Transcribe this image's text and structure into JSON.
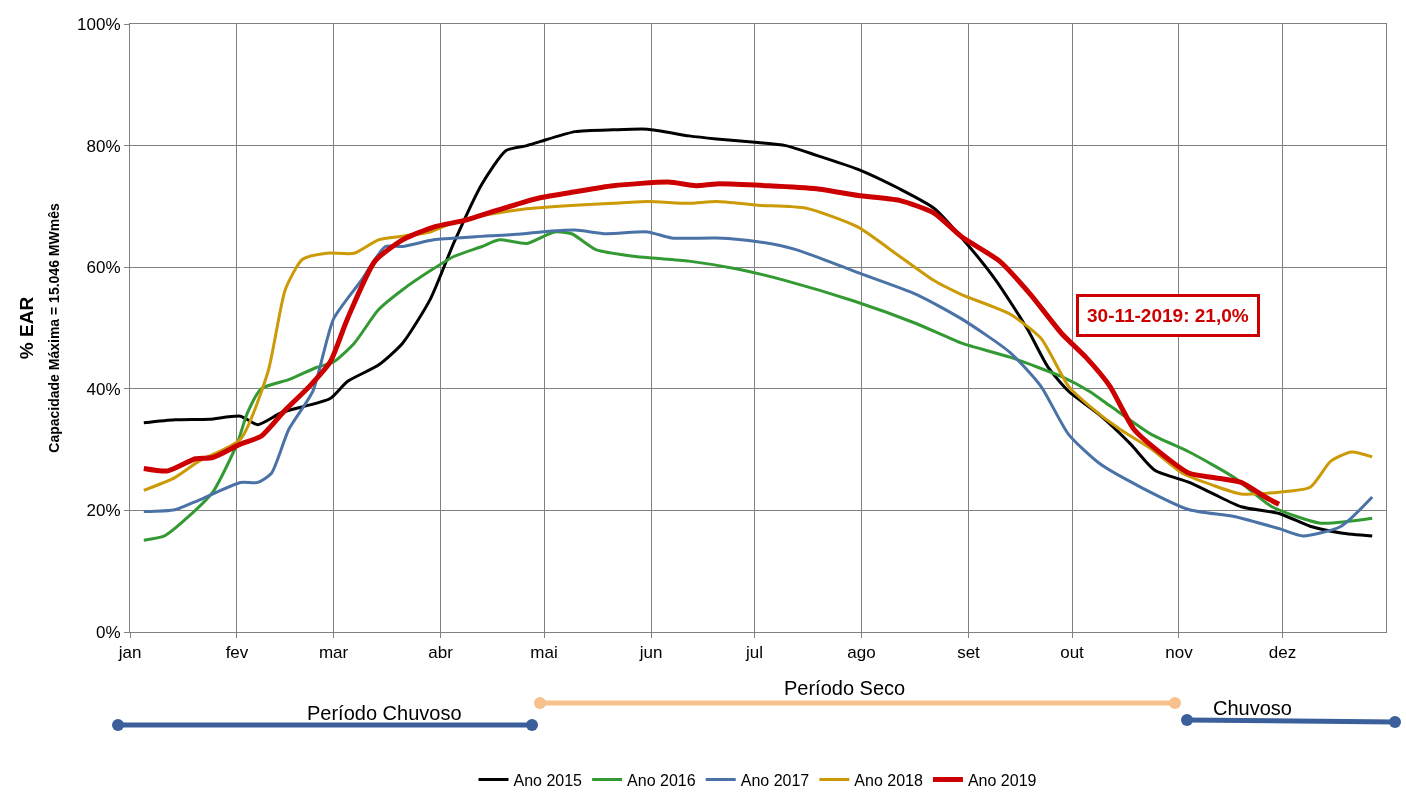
{
  "chart_data": {
    "type": "line",
    "ylabel": "% EAR\nCapacidade Máxima = 15.046 MWmês",
    "xlim": [
      "--01-01",
      "--12-31"
    ],
    "xticks": [
      {
        "value": "--01-01",
        "label": "jan"
      },
      {
        "value": "--02-01",
        "label": "fev"
      },
      {
        "value": "--03-01",
        "label": "mar"
      },
      {
        "value": "--04-01",
        "label": "abr"
      },
      {
        "value": "--05-01",
        "label": "mai"
      },
      {
        "value": "--06-01",
        "label": "jun"
      },
      {
        "value": "--07-01",
        "label": "jul"
      },
      {
        "value": "--08-01",
        "label": "ago"
      },
      {
        "value": "--09-01",
        "label": "set"
      },
      {
        "value": "--10-01",
        "label": "out"
      },
      {
        "value": "--11-01",
        "label": "nov"
      },
      {
        "value": "--12-01",
        "label": "dez"
      }
    ],
    "ylim": [
      0,
      100
    ],
    "yticks": [
      {
        "value": 0,
        "label": "0%"
      },
      {
        "value": 20,
        "label": "20%"
      },
      {
        "value": 40,
        "label": "40%"
      },
      {
        "value": 60,
        "label": "60%"
      },
      {
        "value": 80,
        "label": "80%"
      },
      {
        "value": 100,
        "label": "100%"
      }
    ],
    "grid": true,
    "legend": "bottom",
    "line_style": "solid",
    "series": [
      {
        "name": "Ano 2015",
        "color": "#000000",
        "x": [
          "--01-05",
          "--01-14",
          "--01-24",
          "--02-02",
          "--02-07",
          "--02-14",
          "--02-28",
          "--03-05",
          "--03-14",
          "--03-21",
          "--03-29",
          "--04-05",
          "--04-13",
          "--04-20",
          "--04-26",
          "--04-30",
          "--05-10",
          "--05-21",
          "--05-31",
          "--06-12",
          "--06-20",
          "--07-02",
          "--07-10",
          "--07-19",
          "--07-31",
          "--08-12",
          "--08-22",
          "--08-31",
          "--09-09",
          "--09-18",
          "--09-24",
          "--09-30",
          "--10-09",
          "--10-18",
          "--10-25",
          "--11-04",
          "--11-11",
          "--11-19",
          "--11-30",
          "--12-09",
          "--12-18",
          "--12-27"
        ],
        "values": [
          34.4,
          34.9,
          35,
          35.5,
          34.1,
          36.1,
          38.4,
          41.2,
          43.9,
          47.5,
          54.7,
          64.2,
          73.7,
          79.2,
          80,
          80.7,
          82.3,
          82.6,
          82.7,
          81.6,
          81.1,
          80.5,
          80,
          78.4,
          76.1,
          72.9,
          69.7,
          64.2,
          57.8,
          49.9,
          43.6,
          39.6,
          35.7,
          30.9,
          26.6,
          24.6,
          22.7,
          20.6,
          19.5,
          17.4,
          16.3,
          15.8
        ]
      },
      {
        "name": "Ano 2016",
        "color": "#339933",
        "x": [
          "--01-05",
          "--01-11",
          "--01-18",
          "--01-25",
          "--02-01",
          "--02-04",
          "--02-08",
          "--02-16",
          "--02-24",
          "--03-01",
          "--03-07",
          "--03-14",
          "--03-21",
          "--03-29",
          "--04-05",
          "--04-13",
          "--04-18",
          "--04-26",
          "--05-04",
          "--05-09",
          "--05-16",
          "--05-27",
          "--06-12",
          "--06-26",
          "--07-10",
          "--07-30",
          "--08-17",
          "--08-30",
          "--09-13",
          "--09-28",
          "--10-06",
          "--10-12",
          "--10-24",
          "--11-04",
          "--11-17",
          "--11-28",
          "--12-12",
          "--12-27"
        ],
        "values": [
          15.1,
          15.8,
          19,
          23,
          30.9,
          36,
          40,
          41.5,
          43.5,
          44.4,
          47.5,
          53,
          56.3,
          59.4,
          61.8,
          63.4,
          64.5,
          63.9,
          65.8,
          65.5,
          62.9,
          61.8,
          61,
          59.7,
          57.8,
          54.4,
          50.7,
          47.5,
          45.2,
          42,
          39.6,
          37.2,
          32.5,
          29.6,
          25.4,
          20.6,
          17.9,
          18.7
        ]
      },
      {
        "name": "Ano 2017",
        "color": "#4a72a6",
        "x": [
          "--01-05",
          "--01-14",
          "--01-21",
          "--02-02",
          "--02-07",
          "--02-11",
          "--02-16",
          "--02-23",
          "--03-01",
          "--03-09",
          "--03-16",
          "--03-21",
          "--03-30",
          "--04-11",
          "--04-23",
          "--04-30",
          "--05-10",
          "--05-19",
          "--05-31",
          "--06-07",
          "--06-20",
          "--07-02",
          "--07-13",
          "--07-31",
          "--08-17",
          "--08-30",
          "--09-13",
          "--09-22",
          "--09-30",
          "--10-09",
          "--10-21",
          "--11-04",
          "--11-17",
          "--11-30",
          "--12-07",
          "--12-18",
          "--12-27"
        ],
        "values": [
          19.8,
          20.1,
          21.7,
          24.6,
          24.6,
          26.1,
          33.3,
          39.6,
          51.5,
          57.8,
          63.4,
          63.4,
          64.5,
          65,
          65.4,
          65.8,
          66.1,
          65.5,
          65.8,
          64.8,
          64.8,
          64.2,
          62.9,
          59.1,
          55.5,
          51.5,
          46,
          40.4,
          32.5,
          27.7,
          23.8,
          20.1,
          19,
          17,
          15.8,
          17.4,
          22.2
        ]
      },
      {
        "name": "Ano 2018",
        "color": "#cc9a06",
        "x": [
          "--01-05",
          "--01-14",
          "--01-21",
          "--02-02",
          "--02-10",
          "--02-15",
          "--02-20",
          "--02-27",
          "--03-07",
          "--03-14",
          "--03-21",
          "--03-29",
          "--04-05",
          "--04-14",
          "--04-26",
          "--05-10",
          "--05-21",
          "--05-31",
          "--06-12",
          "--06-20",
          "--07-02",
          "--07-16",
          "--07-31",
          "--08-12",
          "--08-22",
          "--08-30",
          "--09-13",
          "--09-22",
          "--09-30",
          "--10-06",
          "--10-15",
          "--10-24",
          "--11-02",
          "--11-11",
          "--11-19",
          "--11-30",
          "--12-09",
          "--12-15",
          "--12-21",
          "--12-27"
        ],
        "values": [
          23.3,
          25.4,
          28.1,
          31.7,
          42.8,
          56.3,
          61.3,
          62.3,
          62.3,
          64.5,
          65.1,
          65.8,
          67.4,
          68.6,
          69.6,
          70.2,
          70.5,
          70.8,
          70.5,
          70.8,
          70.2,
          69.7,
          66.6,
          61.8,
          57.8,
          55.5,
          52.3,
          48.3,
          40.4,
          37.2,
          33.3,
          30.1,
          26.1,
          24.1,
          22.7,
          23,
          23.8,
          28.1,
          29.6,
          28.8
        ]
      },
      {
        "name": "Ano 2019",
        "color": "#cc0000",
        "x": [
          "--01-05",
          "--01-12",
          "--01-20",
          "--01-25",
          "--02-02",
          "--02-08",
          "--02-15",
          "--02-22",
          "--02-28",
          "--03-05",
          "--03-13",
          "--03-21",
          "--03-30",
          "--04-08",
          "--04-17",
          "--04-29",
          "--05-10",
          "--05-21",
          "--06-06",
          "--06-14",
          "--06-20",
          "--07-05",
          "--07-19",
          "--07-31",
          "--08-12",
          "--08-22",
          "--08-30",
          "--09-10",
          "--09-19",
          "--09-28",
          "--10-05",
          "--10-12",
          "--10-19",
          "--10-27",
          "--11-04",
          "--11-11",
          "--11-19",
          "--11-26",
          "--11-30"
        ],
        "values": [
          26.9,
          26.5,
          28.5,
          28.7,
          30.9,
          32.2,
          36.5,
          40.4,
          44.4,
          51.5,
          61,
          64.5,
          66.6,
          67.7,
          69.3,
          71.3,
          72.4,
          73.4,
          74,
          73.4,
          73.7,
          73.4,
          72.9,
          71.8,
          71,
          68.9,
          65,
          61,
          55.5,
          49.1,
          45.2,
          40.4,
          33.3,
          29.3,
          26.1,
          25.4,
          24.6,
          22.2,
          21
        ]
      }
    ],
    "annotations": [
      "30-11-2019: 21,0%",
      "Período Chuvoso",
      "Período Seco",
      "Chuvoso"
    ]
  }
}
